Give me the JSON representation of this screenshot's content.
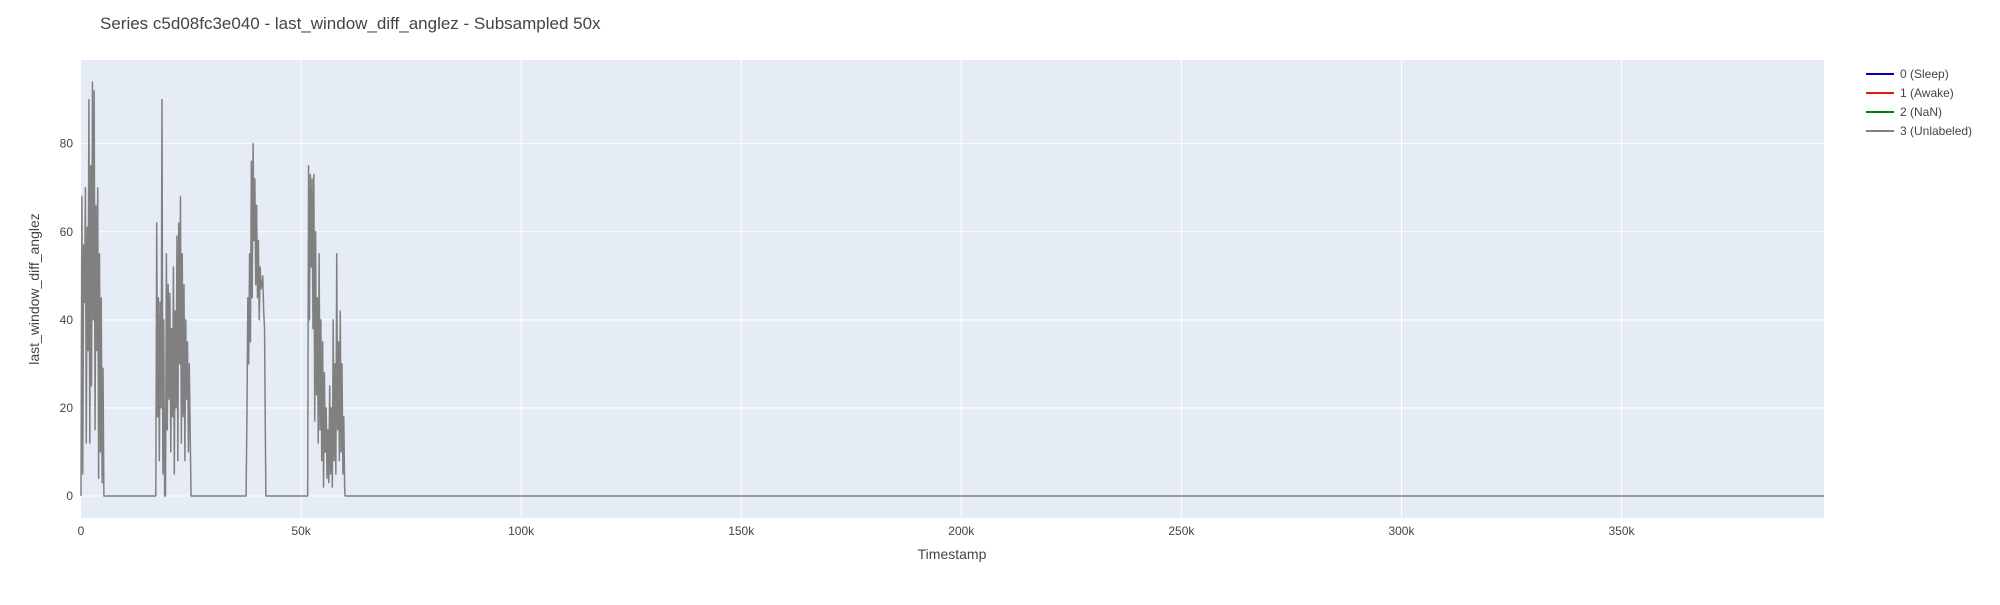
{
  "chart_data": {
    "type": "line",
    "title": "Series c5d08fc3e040 - last_window_diff_anglez - Subsampled 50x",
    "xlabel": "Timestamp",
    "ylabel": "last_window_diff_anglez",
    "xlim": [
      0,
      396000
    ],
    "ylim": [
      -5,
      99
    ],
    "x_ticks": [
      0,
      50000,
      100000,
      150000,
      200000,
      250000,
      300000,
      350000
    ],
    "x_tick_labels": [
      "0",
      "50k",
      "100k",
      "150k",
      "200k",
      "250k",
      "300k",
      "350k"
    ],
    "y_ticks": [
      0,
      20,
      40,
      60,
      80
    ],
    "y_tick_labels": [
      "0",
      "20",
      "40",
      "60",
      "80"
    ],
    "grid": true,
    "legend_position": "top-right",
    "colors": {
      "plot_bg": "#e5ecf6",
      "grid": "#ffffff",
      "text": "#444444",
      "title": "#444444"
    },
    "series": [
      {
        "name": "0 (Sleep)",
        "color": "#0000b3",
        "x": [],
        "y": []
      },
      {
        "name": "1 (Awake)",
        "color": "#e31a1c",
        "x": [],
        "y": []
      },
      {
        "name": "2 (NaN)",
        "color": "#008000",
        "x": [],
        "y": []
      },
      {
        "name": "3 (Unlabeled)",
        "color": "#808080",
        "x": [
          0,
          200,
          400,
          600,
          800,
          1000,
          1200,
          1400,
          1600,
          1800,
          2000,
          2200,
          2400,
          2600,
          2800,
          3000,
          3200,
          3400,
          3600,
          3800,
          4000,
          4200,
          4400,
          4600,
          4800,
          5000,
          5200,
          5400,
          5600,
          5800,
          6000,
          17000,
          17200,
          17400,
          17600,
          17800,
          18000,
          18200,
          18400,
          18600,
          18800,
          19000,
          19200,
          19400,
          19600,
          19800,
          20000,
          20200,
          20400,
          20600,
          20800,
          21000,
          21200,
          21400,
          21600,
          21800,
          22000,
          22200,
          22400,
          22600,
          22800,
          23000,
          23200,
          23400,
          23600,
          23800,
          24000,
          24200,
          24400,
          24600,
          24800,
          25000,
          37500,
          37700,
          37900,
          38100,
          38300,
          38500,
          38700,
          38900,
          39100,
          39300,
          39500,
          39700,
          39900,
          40100,
          40300,
          40500,
          40700,
          40900,
          41100,
          41300,
          41500,
          41700,
          41900,
          42000,
          51500,
          51700,
          51900,
          52100,
          52300,
          52500,
          52700,
          52900,
          53100,
          53300,
          53500,
          53700,
          53900,
          54100,
          54300,
          54500,
          54700,
          54900,
          55100,
          55300,
          55500,
          55700,
          55900,
          56100,
          56300,
          56500,
          56700,
          56900,
          57100,
          57300,
          57500,
          57700,
          57900,
          58100,
          58300,
          58500,
          58700,
          58900,
          59100,
          59300,
          59500,
          59700,
          59900,
          60000,
          396000
        ],
        "y": [
          0,
          68,
          5,
          57,
          44,
          70,
          12,
          61,
          33,
          90,
          12,
          75,
          25,
          94,
          40,
          92,
          15,
          66,
          33,
          70,
          4,
          55,
          10,
          45,
          3,
          29,
          0,
          0,
          0,
          0,
          0,
          0,
          62,
          18,
          45,
          8,
          44,
          20,
          90,
          5,
          40,
          0,
          0,
          55,
          15,
          48,
          22,
          46,
          10,
          38,
          18,
          52,
          5,
          42,
          20,
          59,
          8,
          62,
          30,
          68,
          12,
          55,
          18,
          48,
          8,
          40,
          22,
          35,
          10,
          30,
          15,
          0,
          0,
          18,
          45,
          30,
          55,
          35,
          76,
          45,
          80,
          58,
          72,
          48,
          66,
          45,
          58,
          40,
          52,
          47,
          48,
          50,
          42,
          38,
          12,
          0,
          0,
          75,
          40,
          73,
          52,
          72,
          38,
          73,
          17,
          60,
          23,
          45,
          12,
          55,
          15,
          40,
          8,
          35,
          2,
          28,
          10,
          20,
          4,
          15,
          3,
          25,
          5,
          20,
          2,
          40,
          8,
          30,
          5,
          55,
          15,
          35,
          8,
          42,
          10,
          30,
          5,
          18,
          2,
          0,
          0
        ]
      }
    ]
  }
}
